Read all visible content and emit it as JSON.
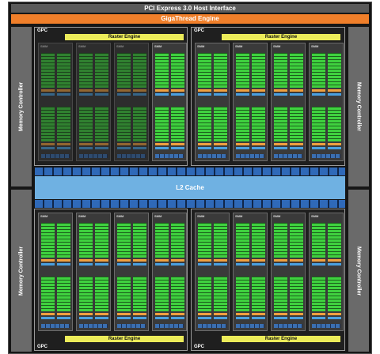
{
  "diagram": {
    "host_interface": "PCI Express 3.0 Host Interface",
    "thread_engine": "GigaThread Engine",
    "l2_cache": "L2 Cache",
    "memory_controller": "Memory Controller",
    "gpc_label": "GPC",
    "raster_engine": "Raster Engine",
    "smm_label": "SMM",
    "colors": {
      "chip_bg": "#161616",
      "host_interface": "#5a5a5a",
      "thread_engine": "#f07f2a",
      "l2_cache": "#6fb1e2",
      "raster_engine": "#ecec5a",
      "cuda_core": "#3fd13f",
      "ld_st": "#f0a040",
      "sfu": "#4aa0e0"
    }
  }
}
